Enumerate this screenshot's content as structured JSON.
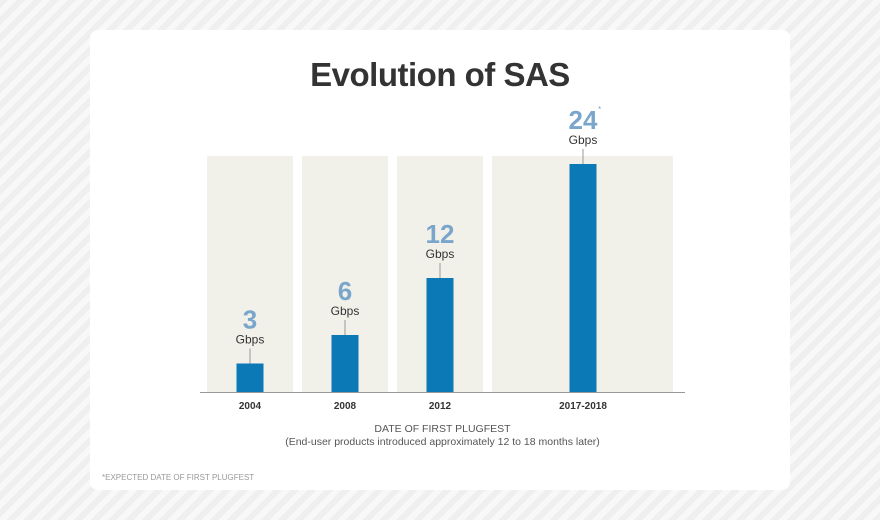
{
  "chart_data": {
    "type": "bar",
    "title": "Evolution of SAS",
    "categories": [
      "2004",
      "2008",
      "2012",
      "2017-2018"
    ],
    "values": [
      3,
      6,
      12,
      24
    ],
    "unit": "Gbps",
    "value_marks": [
      "",
      "",
      "",
      "*"
    ],
    "xlabel": "DATE OF FIRST PLUGFEST",
    "xlabel_sub": "(End-user products introduced approximately 12 to 18 months later)",
    "footnote": "*EXPECTED DATE OF FIRST PLUGFEST",
    "ylim": [
      0,
      24.8
    ],
    "grid": false,
    "colors": {
      "bar": "#0a79b5",
      "panel": "#f1f0e9",
      "value_label": "#7aa6cc"
    }
  }
}
